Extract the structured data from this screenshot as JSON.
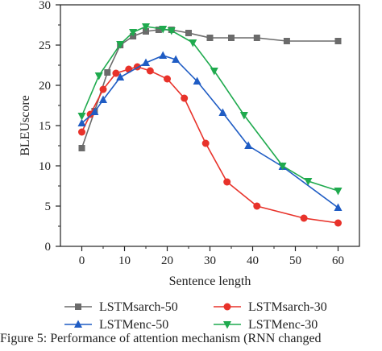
{
  "chart_data": {
    "type": "line",
    "xlabel": "Sentence length",
    "ylabel": "BLEUscore",
    "xlim": [
      -5,
      65
    ],
    "ylim": [
      0,
      30
    ],
    "xticks": [
      0,
      10,
      20,
      30,
      40,
      50,
      60
    ],
    "yticks": [
      0,
      5,
      10,
      15,
      20,
      25,
      30
    ],
    "grid": false,
    "legend_position": "bottom",
    "series": [
      {
        "name": "LSTMsarch-50",
        "color": "#6b6b6b",
        "marker": "square",
        "x": [
          0,
          3,
          6,
          9,
          12,
          15,
          18,
          21,
          25,
          30,
          35,
          41,
          48,
          60
        ],
        "y": [
          12.2,
          16.8,
          21.6,
          25.0,
          26.1,
          26.7,
          26.9,
          26.9,
          26.5,
          25.9,
          25.9,
          25.9,
          25.5,
          25.5
        ]
      },
      {
        "name": "LSTMsarch-30",
        "color": "#e8322a",
        "marker": "circle",
        "x": [
          0,
          2,
          5,
          8,
          11,
          13,
          16,
          20,
          24,
          29,
          34,
          41,
          52,
          60
        ],
        "y": [
          14.2,
          16.4,
          19.5,
          21.5,
          22.0,
          22.3,
          21.8,
          20.8,
          18.4,
          12.8,
          8.0,
          5.0,
          3.5,
          2.9
        ]
      },
      {
        "name": "LSTMenc-50",
        "color": "#1f5cc4",
        "marker": "triangle-up",
        "x": [
          0,
          3,
          5,
          9,
          15,
          19,
          22,
          27,
          33,
          39,
          47,
          60
        ],
        "y": [
          15.3,
          16.7,
          18.2,
          21.0,
          22.8,
          23.7,
          23.2,
          20.5,
          16.6,
          12.5,
          9.9,
          4.8
        ]
      },
      {
        "name": "LSTMenc-30",
        "color": "#1faa4e",
        "marker": "triangle-down",
        "x": [
          0,
          4,
          9,
          12,
          15,
          19,
          21,
          26,
          31,
          38,
          47,
          53,
          60
        ],
        "y": [
          16.2,
          21.2,
          25.1,
          26.6,
          27.3,
          27.0,
          26.8,
          25.3,
          21.8,
          16.3,
          10.0,
          8.1,
          6.9
        ]
      }
    ]
  },
  "caption": "Figure 5: Performance of attention mechanism (RNN changed"
}
